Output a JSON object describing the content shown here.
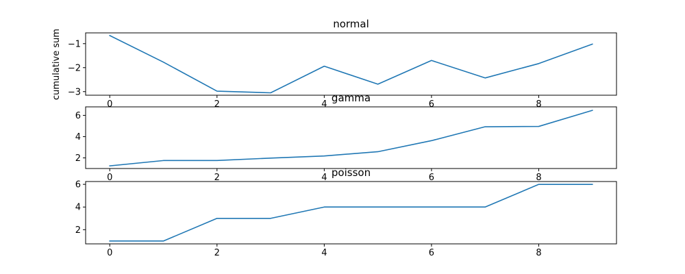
{
  "figure": {
    "background": "#ffffff"
  },
  "chart_data": [
    {
      "type": "line",
      "title": "normal",
      "ylabel": "cumulative sum",
      "xlabel": "",
      "x": [
        0,
        1,
        2,
        3,
        4,
        5,
        6,
        7,
        8,
        9
      ],
      "series": [
        {
          "values": [
            -0.66,
            -1.77,
            -2.98,
            -3.05,
            -1.94,
            -2.69,
            -1.7,
            -2.43,
            -1.83,
            -1.02
          ],
          "color": "#1f77b4"
        }
      ],
      "xlim": [
        -0.45,
        9.45
      ],
      "ylim": [
        -3.15,
        -0.55
      ],
      "xticks": [
        0,
        2,
        4,
        6,
        8
      ],
      "yticks": [
        -3,
        -2,
        -1
      ],
      "ytick_labels": [
        "−3",
        "−2",
        "−1"
      ],
      "grid": false
    },
    {
      "type": "line",
      "title": "gamma",
      "ylabel": "",
      "xlabel": "",
      "x": [
        0,
        1,
        2,
        3,
        4,
        5,
        6,
        7,
        8,
        9
      ],
      "series": [
        {
          "values": [
            1.25,
            1.75,
            1.75,
            1.98,
            2.18,
            2.58,
            3.62,
            4.93,
            4.96,
            6.47
          ],
          "color": "#1f77b4"
        }
      ],
      "xlim": [
        -0.45,
        9.45
      ],
      "ylim": [
        1.0,
        6.8
      ],
      "xticks": [
        0,
        2,
        4,
        6,
        8
      ],
      "yticks": [
        2,
        4,
        6
      ],
      "ytick_labels": [
        "2",
        "4",
        "6"
      ],
      "grid": false
    },
    {
      "type": "line",
      "title": "poisson",
      "ylabel": "",
      "xlabel": "",
      "x": [
        0,
        1,
        2,
        3,
        4,
        5,
        6,
        7,
        8,
        9
      ],
      "series": [
        {
          "values": [
            1,
            1,
            3,
            3,
            4,
            4,
            4,
            4,
            6,
            6
          ],
          "color": "#1f77b4"
        }
      ],
      "xlim": [
        -0.45,
        9.45
      ],
      "ylim": [
        0.75,
        6.25
      ],
      "xticks": [
        0,
        2,
        4,
        6,
        8
      ],
      "yticks": [
        2,
        4,
        6
      ],
      "ytick_labels": [
        "2",
        "4",
        "6"
      ],
      "grid": false
    }
  ]
}
